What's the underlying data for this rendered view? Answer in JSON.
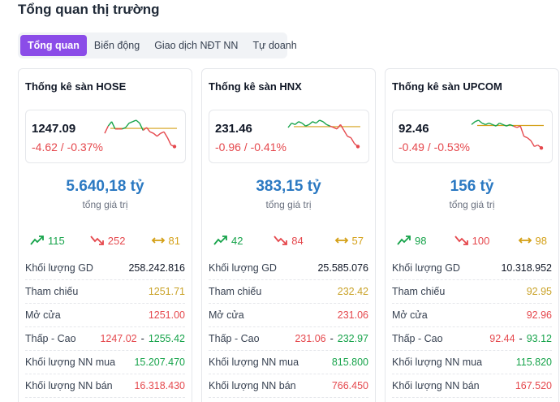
{
  "page": {
    "title": "Tổng quan thị trường"
  },
  "tabs": [
    {
      "label": "Tổng quan",
      "active": true
    },
    {
      "label": "Biến động",
      "active": false
    },
    {
      "label": "Giao dịch NĐT NN",
      "active": false
    },
    {
      "label": "Tự doanh",
      "active": false
    }
  ],
  "colors": {
    "up": "#16a34a",
    "down": "#e5484d",
    "ref": "#d4a017",
    "accent": "#8b4ce8",
    "value": "#2b79c2"
  },
  "row_labels": {
    "volume": "Khối lượng GD",
    "reference": "Tham chiếu",
    "open": "Mở cửa",
    "low_high": "Thấp - Cao",
    "foreign_buy": "Khối lượng NN mua",
    "foreign_sell": "Khối lượng NN bán"
  },
  "value_caption": "tổng giá trị",
  "cards": [
    {
      "title": "Thống kê sàn HOSE",
      "index": "1247.09",
      "change": "-4.62 / -0.37%",
      "value": "5.640,18 tỷ",
      "advancers": "115",
      "decliners": "252",
      "unchanged": "81",
      "volume": "258.242.816",
      "reference": "1251.71",
      "open": "1251.00",
      "low": "1247.02",
      "high": "1255.42",
      "foreign_buy": "15.207.470",
      "foreign_sell": "16.318.430",
      "spark": [
        0.45,
        0.2,
        0.05,
        0.3,
        0.3,
        0.3,
        0.25,
        0.1,
        0.05,
        0.0,
        0.1,
        0.35,
        0.25,
        0.4,
        0.45,
        0.55,
        0.45,
        0.4,
        0.6,
        0.85,
        0.9
      ],
      "spark_ref": 0.28
    },
    {
      "title": "Thống kê sàn HNX",
      "index": "231.46",
      "change": "-0.96 / -0.41%",
      "value": "383,15 tỷ",
      "advancers": "42",
      "decliners": "84",
      "unchanged": "57",
      "volume": "25.585.076",
      "reference": "232.42",
      "open": "231.06",
      "low": "231.06",
      "high": "232.97",
      "foreign_buy": "815.800",
      "foreign_sell": "766.450",
      "spark": [
        0.25,
        0.1,
        0.15,
        0.05,
        0.1,
        0.2,
        0.15,
        0.05,
        0.1,
        0.0,
        0.05,
        0.15,
        0.2,
        0.25,
        0.3,
        0.15,
        0.35,
        0.55,
        0.6,
        0.8,
        0.9
      ],
      "spark_ref": 0.22
    },
    {
      "title": "Thống kê sàn UPCOM",
      "index": "92.46",
      "change": "-0.49 / -0.53%",
      "value": "156 tỷ",
      "advancers": "98",
      "decliners": "100",
      "unchanged": "98",
      "volume": "10.318.952",
      "reference": "92.95",
      "open": "92.96",
      "low": "92.44",
      "high": "93.12",
      "foreign_buy": "115.820",
      "foreign_sell": "167.520",
      "spark": [
        0.15,
        0.05,
        0.0,
        0.1,
        0.15,
        0.1,
        0.15,
        0.2,
        0.1,
        0.15,
        0.2,
        0.15,
        0.2,
        0.25,
        0.2,
        0.55,
        0.6,
        0.7,
        0.9,
        0.85,
        0.95
      ],
      "spark_ref": 0.18
    }
  ]
}
